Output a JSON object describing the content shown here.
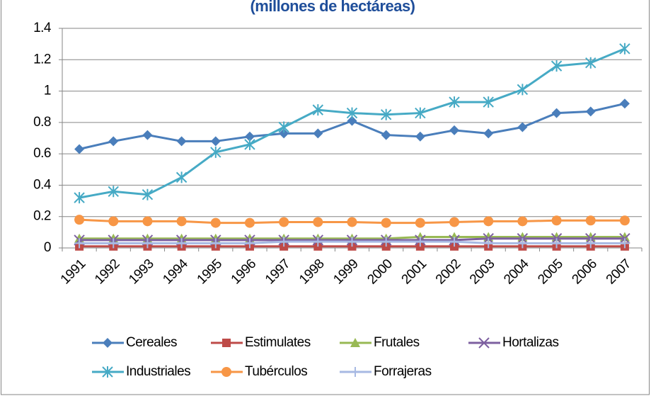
{
  "chart_data": {
    "type": "line",
    "title": "(millones de hectáreas)",
    "categories": [
      "1991",
      "1992",
      "1993",
      "1994",
      "1995",
      "1996",
      "1997",
      "1998",
      "1999",
      "2000",
      "2001",
      "2002",
      "2003",
      "2004",
      "2005",
      "2006",
      "2007"
    ],
    "series": [
      {
        "name": "Cereales",
        "color": "#4a7ebb",
        "marker": "diamond",
        "values": [
          0.63,
          0.68,
          0.72,
          0.68,
          0.68,
          0.71,
          0.73,
          0.73,
          0.81,
          0.72,
          0.71,
          0.75,
          0.73,
          0.77,
          0.86,
          0.87,
          0.92
        ]
      },
      {
        "name": "Estimulates",
        "color": "#be4b48",
        "marker": "square",
        "values": [
          0.01,
          0.01,
          0.01,
          0.01,
          0.01,
          0.01,
          0.01,
          0.01,
          0.01,
          0.01,
          0.01,
          0.01,
          0.01,
          0.01,
          0.01,
          0.01,
          0.01
        ]
      },
      {
        "name": "Frutales",
        "color": "#98b954",
        "marker": "triangle",
        "values": [
          0.06,
          0.06,
          0.06,
          0.06,
          0.06,
          0.06,
          0.06,
          0.06,
          0.06,
          0.06,
          0.07,
          0.07,
          0.07,
          0.07,
          0.07,
          0.07,
          0.07
        ]
      },
      {
        "name": "Hortalizas",
        "color": "#7d60a0",
        "marker": "x",
        "values": [
          0.05,
          0.05,
          0.05,
          0.05,
          0.05,
          0.05,
          0.05,
          0.05,
          0.05,
          0.05,
          0.05,
          0.05,
          0.06,
          0.06,
          0.06,
          0.06,
          0.06
        ]
      },
      {
        "name": "Industriales",
        "color": "#46aac5",
        "marker": "star",
        "values": [
          0.32,
          0.36,
          0.34,
          0.45,
          0.61,
          0.66,
          0.77,
          0.88,
          0.86,
          0.85,
          0.86,
          0.93,
          0.93,
          1.01,
          1.16,
          1.18,
          1.27
        ]
      },
      {
        "name": "Tubérculos",
        "color": "#f79646",
        "marker": "circle",
        "values": [
          0.18,
          0.17,
          0.17,
          0.17,
          0.16,
          0.16,
          0.165,
          0.165,
          0.165,
          0.16,
          0.16,
          0.165,
          0.17,
          0.17,
          0.175,
          0.175,
          0.175
        ]
      },
      {
        "name": "Forrajeras",
        "color": "#a7b9e3",
        "marker": "plus",
        "values": [
          0.03,
          0.03,
          0.03,
          0.03,
          0.03,
          0.03,
          0.04,
          0.04,
          0.04,
          0.04,
          0.04,
          0.04,
          0.03,
          0.03,
          0.03,
          0.03,
          0.03
        ]
      }
    ],
    "ylim": [
      0,
      1.4
    ],
    "yticks": [
      0,
      0.2,
      0.4,
      0.6,
      0.8,
      1,
      1.2,
      1.4
    ],
    "grid": true,
    "legend": "bottom"
  }
}
